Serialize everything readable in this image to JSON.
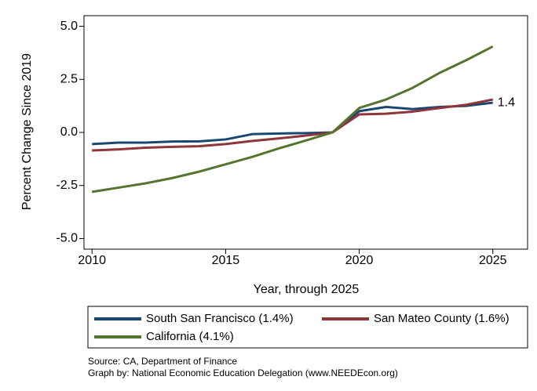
{
  "chart_data": {
    "type": "line",
    "xlabel": "Year, through 2025",
    "ylabel": "Percent Change Since 2019",
    "x": [
      2010,
      2011,
      2012,
      2013,
      2014,
      2015,
      2016,
      2017,
      2018,
      2019,
      2020,
      2021,
      2022,
      2023,
      2024,
      2025
    ],
    "series": [
      {
        "name": "South San Francisco (1.4%)",
        "color": "#1a476f",
        "values": [
          -0.55,
          -0.48,
          -0.48,
          -0.43,
          -0.42,
          -0.33,
          -0.08,
          -0.05,
          -0.03,
          0,
          1.0,
          1.2,
          1.1,
          1.2,
          1.25,
          1.4
        ]
      },
      {
        "name": "San Mateo County (1.6%)",
        "color": "#90353b",
        "values": [
          -0.85,
          -0.8,
          -0.72,
          -0.68,
          -0.65,
          -0.55,
          -0.4,
          -0.28,
          -0.15,
          0,
          0.85,
          0.88,
          0.98,
          1.15,
          1.3,
          1.55
        ]
      },
      {
        "name": "California (4.1%)",
        "color": "#55752f",
        "values": [
          -2.8,
          -2.6,
          -2.4,
          -2.15,
          -1.85,
          -1.5,
          -1.15,
          -0.75,
          -0.38,
          0,
          1.15,
          1.55,
          2.1,
          2.8,
          3.4,
          4.05
        ]
      }
    ],
    "xlim": [
      2009.7,
      2026.3
    ],
    "ylim": [
      -5.5,
      5.5
    ],
    "xticks": [
      2010,
      2015,
      2020,
      2025
    ],
    "yticks": [
      {
        "value": -5,
        "label": "-5.0"
      },
      {
        "value": -2.5,
        "label": "-2.5"
      },
      {
        "value": 0,
        "label": "0.0"
      },
      {
        "value": 2.5,
        "label": "2.5"
      },
      {
        "value": 5,
        "label": "5.0"
      }
    ],
    "source": "Source: CA, Department of Finance",
    "credit": "Graph by: National Economic Education Delegation (www.NEEDEcon.org)"
  }
}
